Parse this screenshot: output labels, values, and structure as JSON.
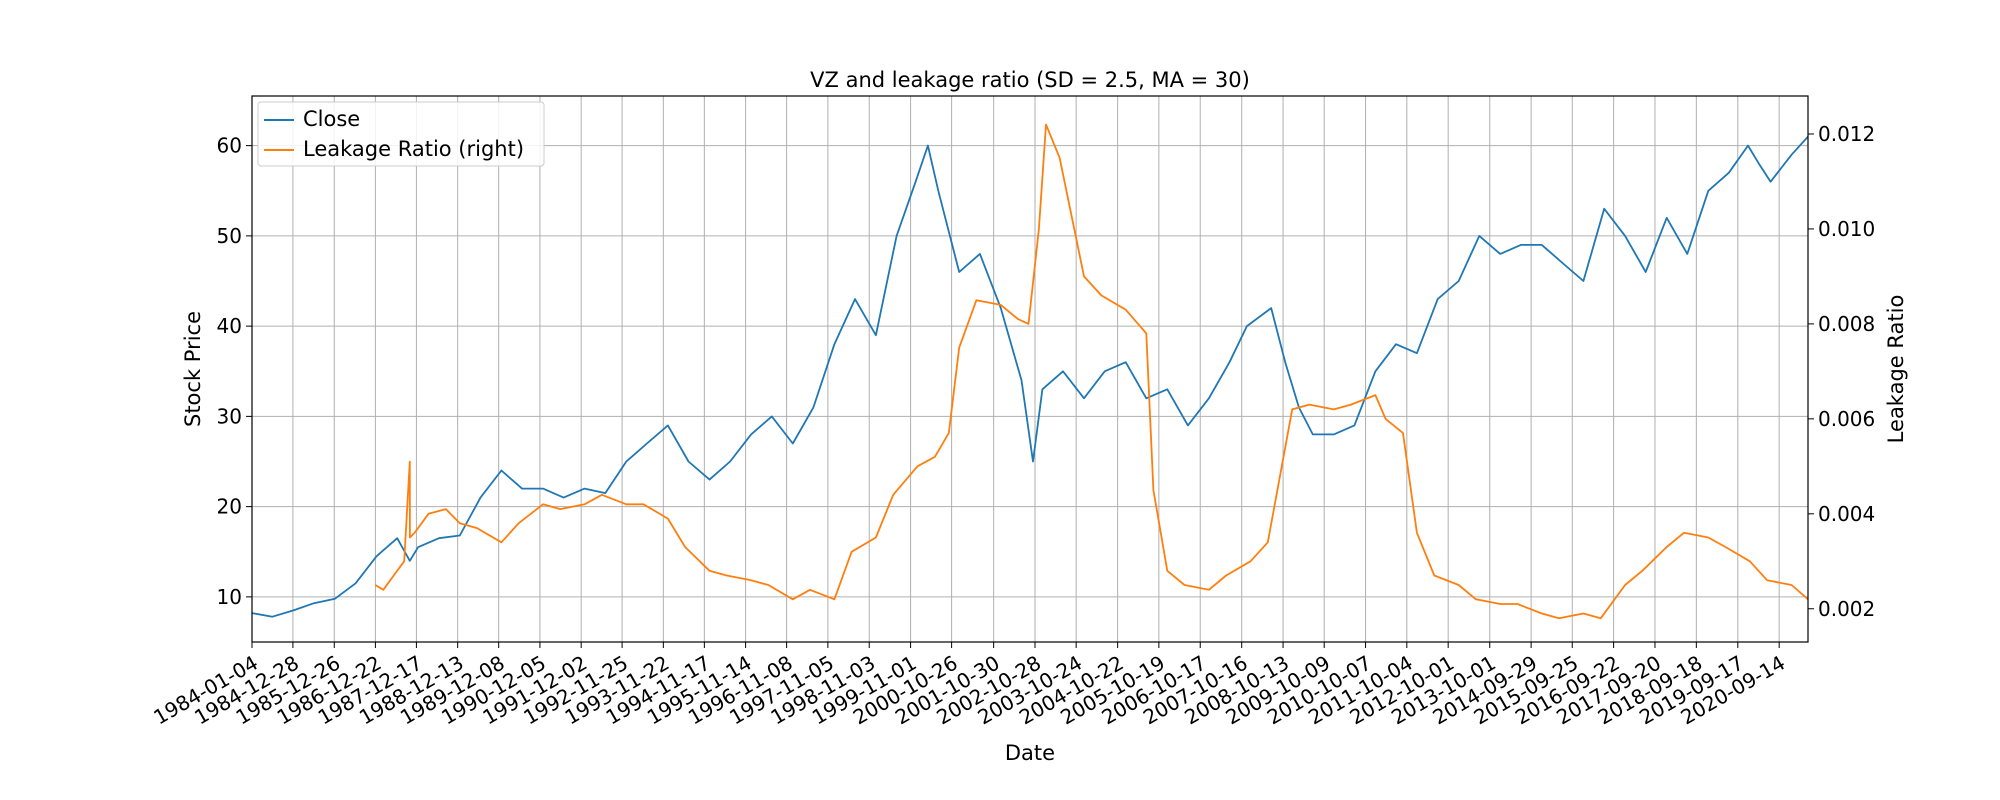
{
  "chart_data": {
    "type": "line",
    "title": "VZ and leakage ratio (SD = 2.5, MA = 30)",
    "xlabel": "Date",
    "ylabel": "Stock Price",
    "ylabel_right": "Leakage Ratio",
    "grid": true,
    "legend_position": "top-left",
    "x_ticks": [
      "1984-01-04",
      "1984-12-28",
      "1985-12-26",
      "1986-12-22",
      "1987-12-17",
      "1988-12-13",
      "1989-12-08",
      "1990-12-05",
      "1991-12-02",
      "1992-11-25",
      "1993-11-22",
      "1994-11-17",
      "1995-11-14",
      "1996-11-08",
      "1997-11-05",
      "1998-11-03",
      "1999-11-01",
      "2000-10-26",
      "2001-10-30",
      "2002-10-28",
      "2003-10-24",
      "2004-10-22",
      "2005-10-19",
      "2006-10-17",
      "2007-10-16",
      "2008-10-13",
      "2009-10-09",
      "2010-10-07",
      "2011-10-04",
      "2012-10-01",
      "2013-10-01",
      "2014-09-29",
      "2015-09-25",
      "2016-09-22",
      "2017-09-20",
      "2018-09-18",
      "2019-09-17",
      "2020-09-14"
    ],
    "y_ticks_left": [
      10,
      20,
      30,
      40,
      50,
      60
    ],
    "y_ticks_right": [
      "0.002",
      "0.004",
      "0.006",
      "0.008",
      "0.010",
      "0.012"
    ],
    "ylim_left": [
      5,
      65.5
    ],
    "ylim_right": [
      0.0013,
      0.0128
    ],
    "xlim": [
      "1984-01-04",
      "2021-05-25"
    ],
    "series": [
      {
        "name": "Close",
        "axis": "left",
        "color": "#1f77b4",
        "x": [
          "1984-01-04",
          "1984-07-01",
          "1985-01-01",
          "1985-07-01",
          "1986-01-01",
          "1986-07-01",
          "1987-01-01",
          "1987-07-01",
          "1987-10-20",
          "1988-01-01",
          "1988-07-01",
          "1989-01-01",
          "1989-07-01",
          "1990-01-01",
          "1990-07-01",
          "1991-01-01",
          "1991-07-01",
          "1992-01-01",
          "1992-07-01",
          "1993-01-01",
          "1993-07-01",
          "1994-01-01",
          "1994-07-01",
          "1995-01-01",
          "1995-07-01",
          "1996-01-01",
          "1996-07-01",
          "1997-01-01",
          "1997-07-01",
          "1998-01-01",
          "1998-07-01",
          "1999-01-01",
          "1999-07-01",
          "1999-12-15",
          "2000-04-01",
          "2000-07-01",
          "2001-01-01",
          "2001-07-01",
          "2002-01-01",
          "2002-07-01",
          "2002-10-10",
          "2003-01-01",
          "2003-07-01",
          "2004-01-01",
          "2004-07-01",
          "2005-01-01",
          "2005-07-01",
          "2006-01-01",
          "2006-07-01",
          "2007-01-01",
          "2007-07-01",
          "2007-12-01",
          "2008-07-01",
          "2008-11-01",
          "2009-03-01",
          "2009-07-01",
          "2010-01-01",
          "2010-07-01",
          "2011-01-01",
          "2011-07-01",
          "2012-01-01",
          "2012-07-01",
          "2013-01-01",
          "2013-07-01",
          "2014-01-01",
          "2014-07-01",
          "2015-01-01",
          "2015-07-01",
          "2016-01-01",
          "2016-07-01",
          "2017-01-01",
          "2017-07-01",
          "2018-01-01",
          "2018-07-01",
          "2019-01-01",
          "2019-07-01",
          "2019-12-15",
          "2020-03-20",
          "2020-07-01",
          "2021-01-01",
          "2021-05-25"
        ],
        "values": [
          8.2,
          7.8,
          8.5,
          9.3,
          9.8,
          11.5,
          14.5,
          16.5,
          14.0,
          15.5,
          16.5,
          16.8,
          21,
          24,
          22,
          22,
          21,
          22,
          21.5,
          25,
          27,
          29,
          25,
          23,
          25,
          28,
          30,
          27,
          31,
          38,
          43,
          39,
          50,
          56,
          60,
          55,
          46,
          48,
          42,
          34,
          25,
          33,
          35,
          32,
          35,
          36,
          32,
          33,
          29,
          32,
          36,
          40,
          42,
          36,
          31,
          28,
          28,
          29,
          35,
          38,
          37,
          43,
          45,
          50,
          48,
          49,
          49,
          47,
          45,
          53,
          50,
          46,
          52,
          48,
          55,
          57,
          60,
          58,
          56,
          59,
          61
        ],
        "breaks": []
      },
      {
        "name": "Leakage Ratio (right)",
        "axis": "right",
        "color": "#ff7f0e",
        "x": [
          "1986-12-22",
          "1987-03-01",
          "1987-06-01",
          "1987-09-01",
          "1987-10-20",
          "1987-10-21",
          "1987-12-01",
          "1988-04-01",
          "1988-09-01",
          "1989-01-01",
          "1989-06-01",
          "1990-01-01",
          "1990-06-01",
          "1991-01-01",
          "1991-06-01",
          "1992-01-01",
          "1992-06-01",
          "1993-01-01",
          "1993-06-01",
          "1994-01-01",
          "1994-06-01",
          "1995-01-01",
          "1995-06-01",
          "1996-01-01",
          "1996-06-01",
          "1997-01-01",
          "1997-06-01",
          "1998-01-01",
          "1998-06-01",
          "1999-01-01",
          "1999-06-01",
          "2000-01-01",
          "2000-06-01",
          "2000-10-01",
          "2001-01-01",
          "2001-06-01",
          "2002-01-01",
          "2002-06-01",
          "2002-09-01",
          "2002-12-01",
          "2003-02-01",
          "2003-06-01",
          "2004-01-01",
          "2004-06-01",
          "2005-01-01",
          "2005-07-01",
          "2005-09-01",
          "2006-01-01",
          "2006-06-01",
          "2007-01-01",
          "2007-06-01",
          "2008-01-01",
          "2008-06-01",
          "2009-01-01",
          "2009-06-01",
          "2010-01-01",
          "2010-06-01",
          "2011-01-01",
          "2011-04-01",
          "2011-09-01",
          "2012-01-01",
          "2012-06-01",
          "2013-01-01",
          "2013-06-01",
          "2014-01-01",
          "2014-06-01",
          "2015-01-01",
          "2015-06-01",
          "2016-01-01",
          "2016-06-01",
          "2017-01-01",
          "2017-06-01",
          "2018-01-01",
          "2018-06-01",
          "2019-01-01",
          "2019-06-01",
          "2020-01-01",
          "2020-06-01",
          "2021-01-01",
          "2021-05-25"
        ],
        "values": [
          0.0025,
          0.0024,
          0.0027,
          0.003,
          0.0051,
          0.0035,
          0.0036,
          0.004,
          0.0041,
          0.0038,
          0.0037,
          0.0034,
          0.0038,
          0.0042,
          0.0041,
          0.0042,
          0.0044,
          0.0042,
          0.0042,
          0.0039,
          0.0033,
          0.0028,
          0.0027,
          0.0026,
          0.0025,
          0.0022,
          0.0024,
          0.0022,
          0.0032,
          0.0035,
          0.0044,
          0.005,
          0.0052,
          0.0057,
          0.0075,
          0.0085,
          0.0084,
          0.0081,
          0.008,
          0.01,
          0.0122,
          0.0115,
          0.009,
          0.0086,
          0.0083,
          0.0078,
          0.0045,
          0.0028,
          0.0025,
          0.0024,
          0.0027,
          0.003,
          0.0034,
          0.0062,
          0.0063,
          0.0062,
          0.0063,
          0.0065,
          0.006,
          0.0057,
          0.0036,
          0.0027,
          0.0025,
          0.0022,
          0.0021,
          0.0021,
          0.0019,
          0.0018,
          0.0019,
          0.0018,
          0.0025,
          0.0028,
          0.0033,
          0.0036,
          0.0035,
          0.0033,
          0.003,
          0.0026,
          0.0025,
          0.0022
        ],
        "breaks": []
      }
    ]
  }
}
